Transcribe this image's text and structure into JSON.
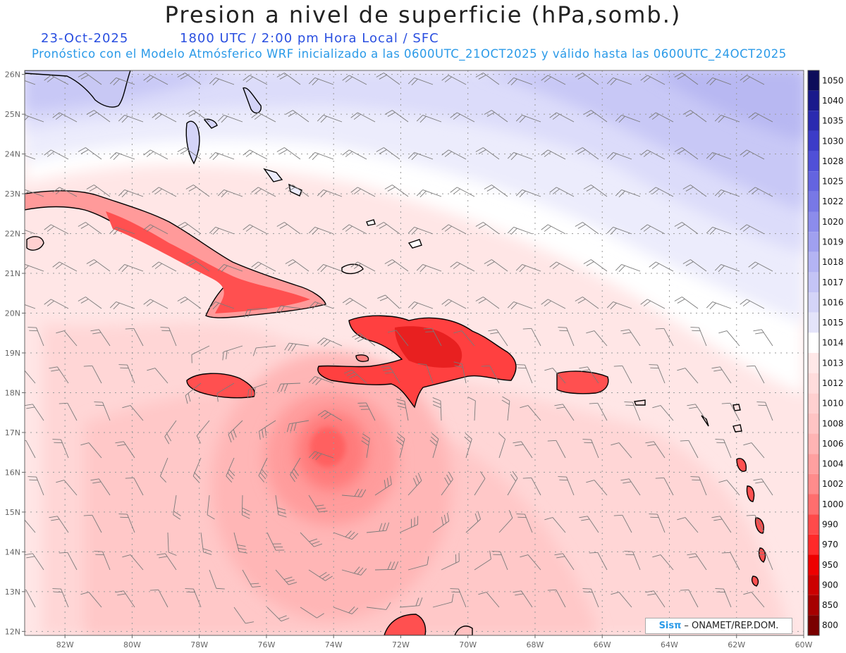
{
  "header": {
    "title": "Presion a nivel de superficie (hPa,somb.)",
    "date": "23-Oct-2025",
    "time_info": "1800 UTC / 2:00 pm Hora Local / SFC",
    "subtitle": "Pronóstico con el Modelo Atmósferico WRF inicializado a las 0600UTC_21OCT2025 y válido hasta las  0600UTC_24OCT2025"
  },
  "axes": {
    "lat_labels": [
      "26N",
      "25N",
      "24N",
      "23N",
      "22N",
      "21N",
      "20N",
      "19N",
      "18N",
      "17N",
      "16N",
      "15N",
      "14N",
      "13N",
      "12N"
    ],
    "lat_values": [
      26,
      25,
      24,
      23,
      22,
      21,
      20,
      19,
      18,
      17,
      16,
      15,
      14,
      13,
      12
    ],
    "lon_labels": [
      "82W",
      "80W",
      "78W",
      "76W",
      "74W",
      "72W",
      "70W",
      "68W",
      "66W",
      "64W",
      "62W",
      "60W"
    ],
    "lon_values": [
      -82,
      -80,
      -78,
      -76,
      -74,
      -72,
      -70,
      -68,
      -66,
      -64,
      -62,
      -60
    ],
    "lon_range": [
      -83.2,
      -60
    ],
    "lat_range": [
      11.9,
      26.1
    ]
  },
  "colorbar": {
    "levels": [
      "1050",
      "1040",
      "1035",
      "1030",
      "1028",
      "1025",
      "1022",
      "1020",
      "1019",
      "1018",
      "1017",
      "1016",
      "1015",
      "1014",
      "1013",
      "1012",
      "1010",
      "1008",
      "1006",
      "1004",
      "1002",
      "1000",
      "990",
      "970",
      "950",
      "900",
      "850",
      "800"
    ],
    "colors": [
      "#0d0d5a",
      "#1a1a8c",
      "#2a2ab0",
      "#3c3cc8",
      "#5050d8",
      "#6464e0",
      "#7878e6",
      "#8c8cec",
      "#a0a0f0",
      "#b4b4f4",
      "#c4c4f6",
      "#d4d4f8",
      "#e4e4fa",
      "#ffffff",
      "#ffe8e8",
      "#ffdcdc",
      "#ffd0d0",
      "#ffc4c4",
      "#ffb4b4",
      "#ffa0a0",
      "#ff8c8c",
      "#ff6e6e",
      "#ff4a4a",
      "#ff2a2a",
      "#ee0000",
      "#cc0000",
      "#a60000",
      "#7a0000"
    ]
  },
  "pressure_field": {
    "units": "hPa",
    "highs": [
      {
        "lon": -66,
        "lat": 26,
        "value": "1020"
      }
    ],
    "lows": [
      {
        "lon": -74.0,
        "lat": 16.2,
        "value": "1002"
      }
    ]
  },
  "credit": {
    "brand": "Sisπ",
    "text": "– ONAMET/REP.DOM."
  }
}
